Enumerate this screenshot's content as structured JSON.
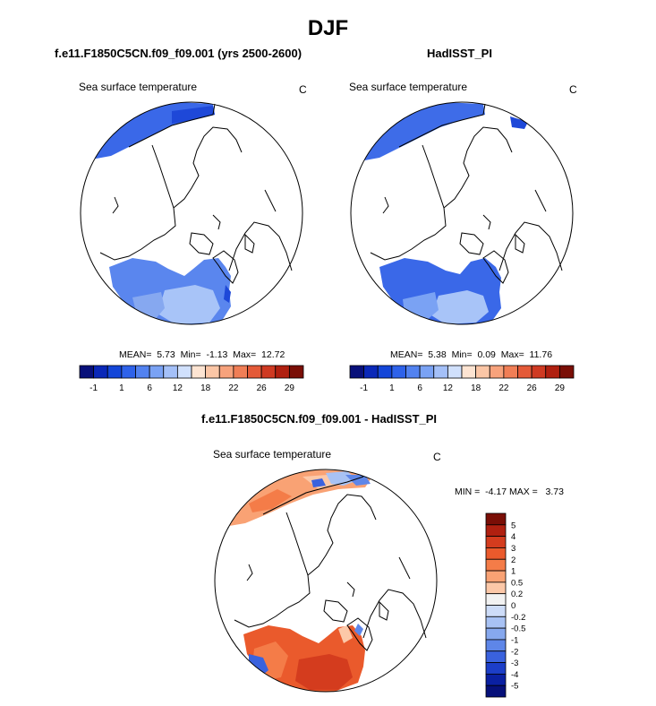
{
  "title": "DJF",
  "panels": [
    {
      "title": "f.e11.F1850C5CN.f09_f09.001 (yrs 2500-2600)",
      "variable": "Sea surface temperature",
      "unit": "C",
      "stats": "MEAN=  5.73  Min=  -1.13  Max=  12.72",
      "colorbar_ticks": [
        "-1",
        "1",
        "6",
        "12",
        "18",
        "22",
        "26",
        "29"
      ]
    },
    {
      "title": "HadISST_PI",
      "variable": "Sea surface temperature",
      "unit": "C",
      "stats": "MEAN=  5.38  Min=  0.09  Max=  11.76",
      "colorbar_ticks": [
        "-1",
        "1",
        "6",
        "12",
        "18",
        "22",
        "26",
        "29"
      ]
    },
    {
      "title": "f.e11.F1850C5CN.f09_f09.001 - HadISST_PI",
      "variable": "Sea surface temperature",
      "unit": "C",
      "stats": "MIN =  -4.17 MAX =   3.73",
      "colorbar_ticks": [
        "5",
        "4",
        "3",
        "2",
        "1",
        "0.5",
        "0.2",
        "0",
        "-0.2",
        "-0.5",
        "-1",
        "-2",
        "-3",
        "-4",
        "-5"
      ]
    }
  ],
  "colors": {
    "abs_scale": [
      "#08107a",
      "#0a28b8",
      "#1446d8",
      "#2e62ea",
      "#5282f0",
      "#7aa2f4",
      "#a4c0f8",
      "#d0e0fc",
      "#fde4d2",
      "#fbc6a6",
      "#f7a27c",
      "#f07e56",
      "#e45a38",
      "#cf3a22",
      "#b02010",
      "#7a0e06"
    ],
    "diff_scale": [
      "#7a0e06",
      "#b02010",
      "#d43c1e",
      "#ea5a2c",
      "#f47c48",
      "#f9a274",
      "#fcc8a8",
      "#f2f2f2",
      "#cddcf8",
      "#a8c2f4",
      "#86a8ee",
      "#5e86e8",
      "#3a62de",
      "#1c3ec8",
      "#0a20a2",
      "#06107a"
    ],
    "land": "#ffffff",
    "coast": "#000000"
  },
  "chart_data": [
    {
      "type": "heatmap",
      "title": "f.e11.F1850C5CN.f09_f09.001 (yrs 2500-2600)",
      "projection": "north polar stereographic",
      "variable": "Sea surface temperature",
      "unit": "C",
      "mean": 5.73,
      "min": -1.13,
      "max": 12.72,
      "levels": [
        -1,
        1,
        6,
        12,
        18,
        22,
        26,
        29
      ]
    },
    {
      "type": "heatmap",
      "title": "HadISST_PI",
      "projection": "north polar stereographic",
      "variable": "Sea surface temperature",
      "unit": "C",
      "mean": 5.38,
      "min": 0.09,
      "max": 11.76,
      "levels": [
        -1,
        1,
        6,
        12,
        18,
        22,
        26,
        29
      ]
    },
    {
      "type": "heatmap",
      "title": "f.e11.F1850C5CN.f09_f09.001 - HadISST_PI",
      "projection": "north polar stereographic",
      "variable": "Sea surface temperature",
      "unit": "C",
      "min": -4.17,
      "max": 3.73,
      "levels": [
        -5,
        -4,
        -3,
        -2,
        -1,
        -0.5,
        -0.2,
        0,
        0.2,
        0.5,
        1,
        2,
        3,
        4,
        5
      ]
    }
  ]
}
